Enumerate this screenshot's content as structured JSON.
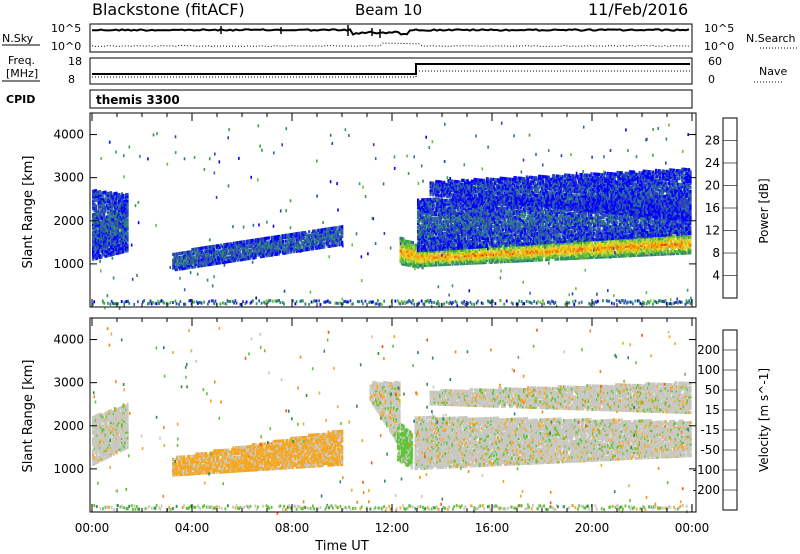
{
  "header": {
    "station": "Blackstone (fitACF)",
    "beam": "Beam 10",
    "date": "11/Feb/2016"
  },
  "top_panels": {
    "nsky_label": "N.Sky",
    "nsearch_label": "N.Search",
    "left_ticks": [
      "10^5",
      "10^0"
    ],
    "right_ticks": [
      "10^5",
      "10^0"
    ],
    "freq_label_1": "Freq.",
    "freq_label_2": "[MHz]",
    "freq_ticks": [
      "18",
      "8"
    ],
    "nave_label": "Nave",
    "nave_ticks": [
      "60",
      "0"
    ],
    "cpid_label": "CPID",
    "cpid_value": "themis 3300"
  },
  "colorbars": {
    "power": {
      "label": "Power [dB]",
      "ticks": [
        "28",
        "24",
        "20",
        "16",
        "12",
        "8",
        "4"
      ],
      "colors": [
        "#0000ff",
        "#2a3fbf",
        "#2e6fa0",
        "#2f8a6a",
        "#34a34a",
        "#6cc03a",
        "#b8d438",
        "#f2d21c",
        "#f5a60a",
        "#ef6a06",
        "#e53008",
        "#d80000"
      ]
    },
    "velocity": {
      "label": "Velocity [m s^-1]",
      "ticks": [
        "200",
        "100",
        "50",
        "15",
        "-15",
        "-50",
        "-100",
        "-200"
      ],
      "colors": [
        "#1a32b8",
        "#2a6da8",
        "#2f8f4a",
        "#5fc43a",
        "#c8c8c0",
        "#f5a623",
        "#f08a10",
        "#ee5a0a",
        "#e81818"
      ]
    }
  },
  "chart_data": [
    {
      "type": "heatmap",
      "panel": "power",
      "ylabel": "Slant Range [km]",
      "yticks": [
        1000,
        2000,
        3000,
        4000
      ],
      "ylim": [
        0,
        4500
      ],
      "xlim_hours": [
        0,
        24
      ],
      "xticks": [
        "00:00",
        "04:00",
        "08:00",
        "12:00",
        "16:00",
        "20:00",
        "00:00"
      ],
      "colorbar_range_dB": [
        0,
        30
      ],
      "bands": [
        {
          "t0": 0.0,
          "t1": 1.4,
          "r0": 1400,
          "r1": 1600,
          "r0_end": 1700,
          "r1_end": 2400,
          "level": 0.7
        },
        {
          "t0": 0.0,
          "t1": 1.4,
          "r0": 1100,
          "r1": 2700,
          "r0_end": 1300,
          "r1_end": 2600,
          "level": 0.15
        },
        {
          "t0": 3.2,
          "t1": 10.0,
          "r0": 850,
          "r1": 1250,
          "r0_end": 1450,
          "r1_end": 1900,
          "level": 0.18
        },
        {
          "t0": 12.3,
          "t1": 13.2,
          "r0": 1000,
          "r1": 1600,
          "r0_end": 900,
          "r1_end": 1400,
          "level": 0.75
        },
        {
          "t0": 13.0,
          "t1": 23.9,
          "r0": 950,
          "r1": 1300,
          "r0_end": 1250,
          "r1_end": 1700,
          "level": 0.78
        },
        {
          "t0": 13.0,
          "t1": 23.9,
          "r0": 1300,
          "r1": 2500,
          "r0_end": 1700,
          "r1_end": 2600,
          "level": 0.15
        },
        {
          "t0": 13.5,
          "t1": 23.9,
          "r0": 2600,
          "r1": 2900,
          "r0_end": 2000,
          "r1_end": 3200,
          "level": 0.1
        }
      ]
    },
    {
      "type": "heatmap",
      "panel": "velocity",
      "ylabel": "Slant Range [km]",
      "yticks": [
        1000,
        2000,
        3000,
        4000
      ],
      "ylim": [
        0,
        4500
      ],
      "xlim_hours": [
        0,
        24
      ],
      "xlabel": "Time UT",
      "xticks": [
        "00:00",
        "04:00",
        "08:00",
        "12:00",
        "16:00",
        "20:00",
        "00:00"
      ],
      "colorbar_range_ms": [
        -200,
        200
      ],
      "bands": [
        {
          "t0": 0.0,
          "t1": 1.4,
          "r0": 1100,
          "r1": 2200,
          "r0_end": 1500,
          "r1_end": 2500,
          "v": 0
        },
        {
          "t0": 3.2,
          "t1": 10.0,
          "r0": 850,
          "r1": 1250,
          "r0_end": 1100,
          "r1_end": 1900,
          "v": -40
        },
        {
          "t0": 11.1,
          "t1": 12.3,
          "r0": 2600,
          "r1": 3000,
          "r0_end": 1500,
          "r1_end": 3000,
          "v": 0
        },
        {
          "t0": 12.2,
          "t1": 12.8,
          "r0": 1200,
          "r1": 2100,
          "r0_end": 1000,
          "r1_end": 1800,
          "v": 40
        },
        {
          "t0": 12.9,
          "t1": 23.9,
          "r0": 1000,
          "r1": 2200,
          "r0_end": 1300,
          "r1_end": 2100,
          "v": 0
        },
        {
          "t0": 13.5,
          "t1": 23.9,
          "r0": 2500,
          "r1": 2800,
          "r0_end": 2300,
          "r1_end": 3000,
          "v": 0
        }
      ]
    }
  ]
}
